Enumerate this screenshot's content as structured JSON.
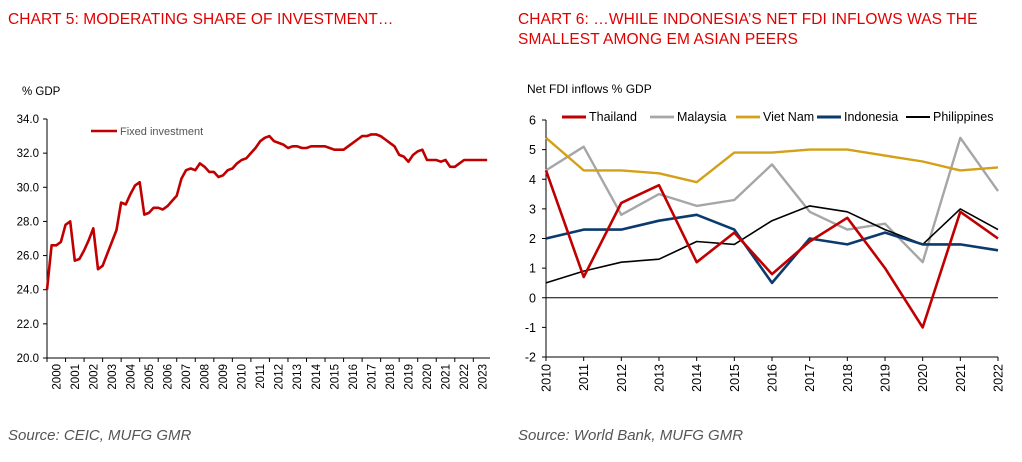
{
  "charts": {
    "chart5": {
      "title": "CHART 5: MODERATING SHARE OF INVESTMENT…",
      "source": "Source: CEIC, MUFG GMR"
    },
    "chart6": {
      "title": "CHART 6: …WHILE INDONESIA’S NET FDI INFLOWS WAS THE SMALLEST AMONG EM ASIAN PEERS",
      "source": "Source: World Bank, MUFG GMR"
    }
  },
  "colors": {
    "title_red": "#e00000",
    "thailand": "#c00000",
    "malaysia": "#a6a6a6",
    "vietnam": "#d4a017",
    "indonesia": "#0b3a6e",
    "philippines": "#000000",
    "fixed_investment": "#c00000"
  },
  "chart_data": [
    {
      "type": "line",
      "ylabel": "% GDP",
      "ylim": [
        20,
        34
      ],
      "yticks": [
        "20.0",
        "22.0",
        "24.0",
        "26.0",
        "28.0",
        "30.0",
        "32.0",
        "34.0"
      ],
      "xticks": [
        "2000",
        "2001",
        "2002",
        "2003",
        "2004",
        "2005",
        "2006",
        "2007",
        "2008",
        "2009",
        "2010",
        "2011",
        "2012",
        "2013",
        "2014",
        "2015",
        "2016",
        "2017",
        "2018",
        "2019",
        "2020",
        "2021",
        "2022",
        "2023"
      ],
      "xlim": [
        2000,
        2023.9
      ],
      "grid": false,
      "legend": "top-left",
      "series": [
        {
          "name": "Fixed investment",
          "x": [
            2000.0,
            2000.25,
            2000.5,
            2000.75,
            2001.0,
            2001.25,
            2001.5,
            2001.75,
            2002.0,
            2002.25,
            2002.5,
            2002.75,
            2003.0,
            2003.25,
            2003.5,
            2003.75,
            2004.0,
            2004.25,
            2004.5,
            2004.75,
            2005.0,
            2005.25,
            2005.5,
            2005.75,
            2006.0,
            2006.25,
            2006.5,
            2006.75,
            2007.0,
            2007.25,
            2007.5,
            2007.75,
            2008.0,
            2008.25,
            2008.5,
            2008.75,
            2009.0,
            2009.25,
            2009.5,
            2009.75,
            2010.0,
            2010.25,
            2010.5,
            2010.75,
            2011.0,
            2011.25,
            2011.5,
            2011.75,
            2012.0,
            2012.25,
            2012.5,
            2012.75,
            2013.0,
            2013.25,
            2013.5,
            2013.75,
            2014.0,
            2014.25,
            2014.5,
            2014.75,
            2015.0,
            2015.25,
            2015.5,
            2015.75,
            2016.0,
            2016.25,
            2016.5,
            2016.75,
            2017.0,
            2017.25,
            2017.5,
            2017.75,
            2018.0,
            2018.25,
            2018.5,
            2018.75,
            2019.0,
            2019.25,
            2019.5,
            2019.75,
            2020.0,
            2020.25,
            2020.5,
            2020.75,
            2021.0,
            2021.25,
            2021.5,
            2021.75,
            2022.0,
            2022.25,
            2022.5,
            2022.75,
            2023.0,
            2023.25,
            2023.5,
            2023.75
          ],
          "y": [
            24.0,
            26.6,
            26.6,
            26.8,
            27.8,
            28.0,
            25.7,
            25.8,
            26.3,
            26.9,
            27.6,
            25.2,
            25.4,
            26.1,
            26.8,
            27.5,
            29.1,
            29.0,
            29.6,
            30.1,
            30.3,
            28.4,
            28.5,
            28.8,
            28.8,
            28.7,
            28.9,
            29.2,
            29.5,
            30.5,
            31.0,
            31.1,
            31.0,
            31.4,
            31.2,
            30.9,
            30.9,
            30.6,
            30.7,
            31.0,
            31.1,
            31.4,
            31.6,
            31.7,
            32.0,
            32.3,
            32.7,
            32.9,
            33.0,
            32.7,
            32.6,
            32.5,
            32.3,
            32.4,
            32.4,
            32.3,
            32.3,
            32.4,
            32.4,
            32.4,
            32.4,
            32.3,
            32.2,
            32.2,
            32.2,
            32.4,
            32.6,
            32.8,
            33.0,
            33.0,
            33.1,
            33.1,
            33.0,
            32.8,
            32.6,
            32.4,
            31.9,
            31.8,
            31.5,
            31.9,
            32.1,
            32.2,
            31.6,
            31.6,
            31.6,
            31.5,
            31.6,
            31.2,
            31.2,
            31.4,
            31.6,
            31.6,
            31.6,
            31.6,
            31.6,
            31.6
          ]
        }
      ]
    },
    {
      "type": "line",
      "ylabel": "Net FDI inflows % GDP",
      "ylim": [
        -2,
        6
      ],
      "yticks": [
        "-2",
        "-1",
        "0",
        "1",
        "2",
        "3",
        "4",
        "5",
        "6"
      ],
      "categories": [
        "2010",
        "2011",
        "2012",
        "2013",
        "2014",
        "2015",
        "2016",
        "2017",
        "2018",
        "2019",
        "2020",
        "2021",
        "2022"
      ],
      "grid": false,
      "legend": "top",
      "series": [
        {
          "name": "Thailand",
          "values": [
            4.3,
            0.7,
            3.2,
            3.8,
            1.2,
            2.2,
            0.8,
            1.9,
            2.7,
            1.0,
            -1.0,
            2.9,
            2.0
          ]
        },
        {
          "name": "Malaysia",
          "values": [
            4.3,
            5.1,
            2.8,
            3.5,
            3.1,
            3.3,
            4.5,
            2.9,
            2.3,
            2.5,
            1.2,
            5.4,
            3.6
          ]
        },
        {
          "name": "Viet Nam",
          "values": [
            5.4,
            4.3,
            4.3,
            4.2,
            3.9,
            4.9,
            4.9,
            5.0,
            5.0,
            4.8,
            4.6,
            4.3,
            4.4
          ]
        },
        {
          "name": "Indonesia",
          "values": [
            2.0,
            2.3,
            2.3,
            2.6,
            2.8,
            2.3,
            0.5,
            2.0,
            1.8,
            2.2,
            1.8,
            1.8,
            1.6
          ]
        },
        {
          "name": "Philippines",
          "values": [
            0.5,
            0.9,
            1.2,
            1.3,
            1.9,
            1.8,
            2.6,
            3.1,
            2.9,
            2.3,
            1.8,
            3.0,
            2.3
          ]
        }
      ]
    }
  ]
}
